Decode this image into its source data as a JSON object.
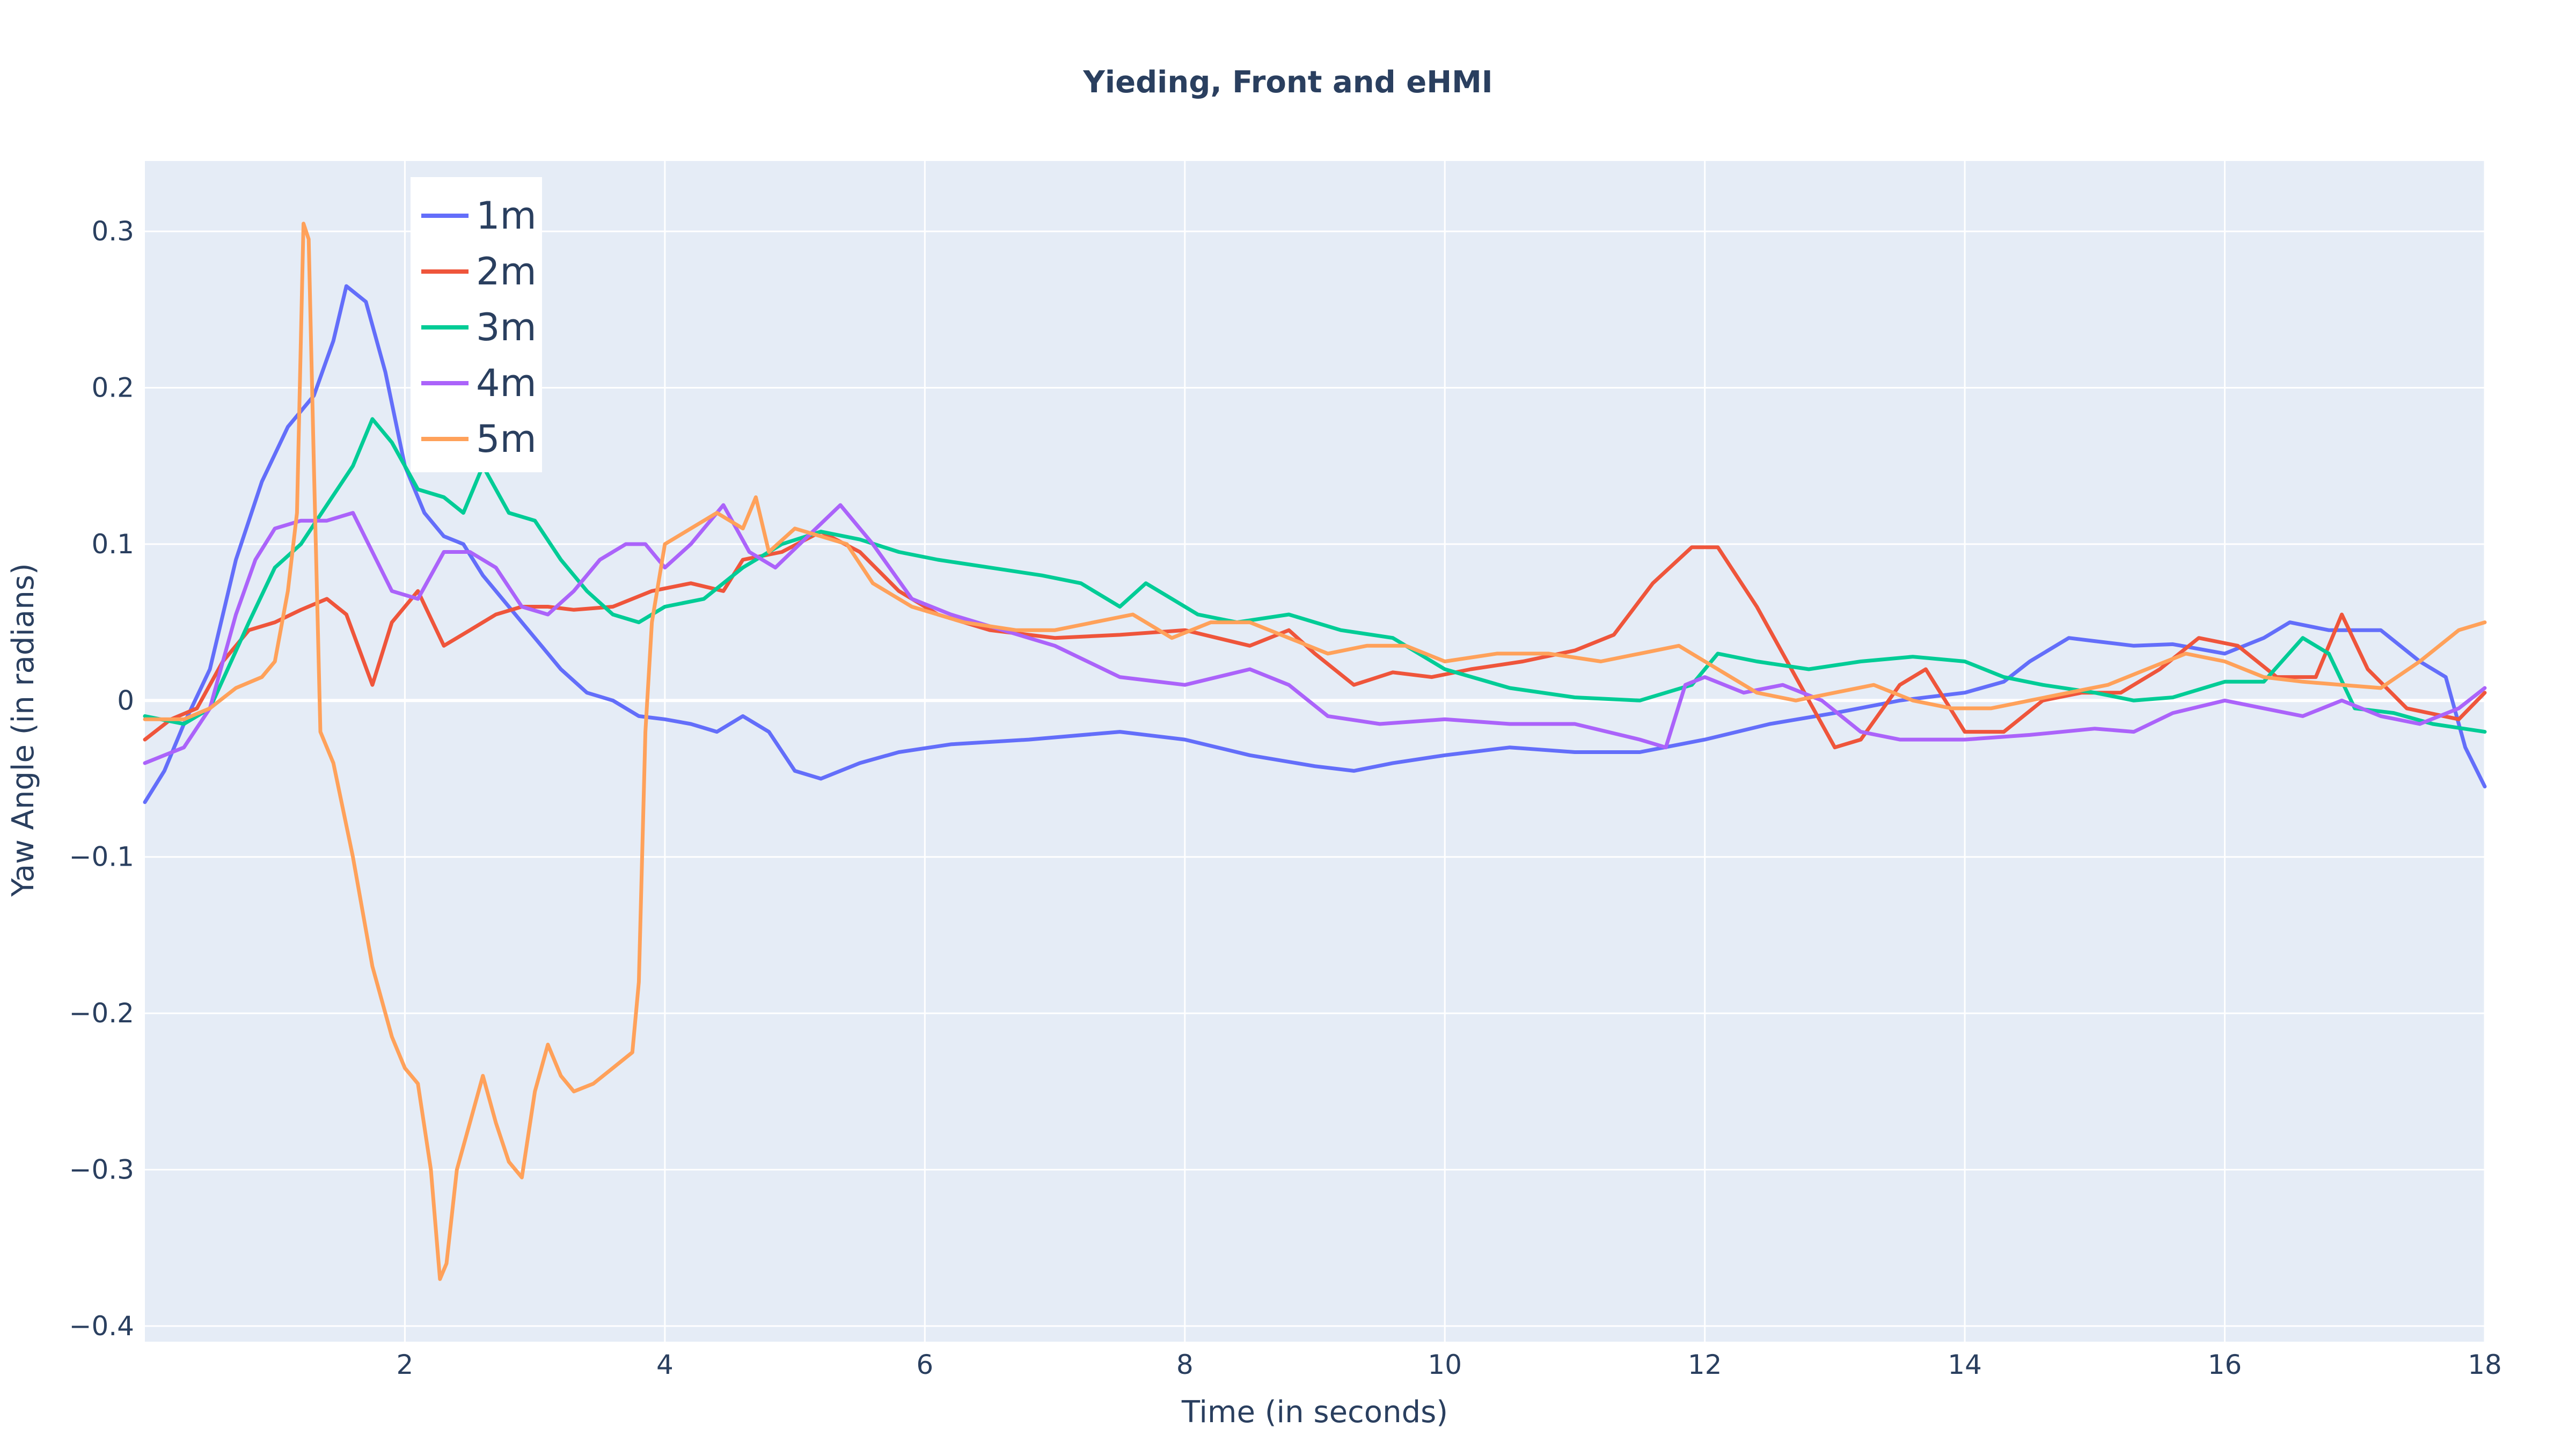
{
  "chart_data": {
    "type": "line",
    "title": "Yieding, Front and eHMI",
    "xlabel": "Time (in seconds)",
    "ylabel": "Yaw Angle (in radians)",
    "xlim": [
      0,
      18
    ],
    "ylim": [
      -0.41,
      0.345
    ],
    "xticks": [
      2,
      4,
      6,
      8,
      10,
      12,
      14,
      16,
      18
    ],
    "yticks": [
      -0.4,
      -0.3,
      -0.2,
      -0.1,
      0,
      0.1,
      0.2,
      0.3
    ],
    "ytick_labels": [
      "−0.4",
      "−0.3",
      "−0.2",
      "−0.1",
      "0",
      "0.1",
      "0.2",
      "0.3"
    ],
    "grid": true,
    "legend_position": "top-left",
    "series": [
      {
        "name": "1m",
        "color": "#636efa",
        "x": [
          0,
          0.15,
          0.3,
          0.5,
          0.7,
          0.9,
          1.1,
          1.3,
          1.45,
          1.55,
          1.7,
          1.85,
          2.0,
          2.15,
          2.3,
          2.45,
          2.6,
          2.8,
          3.0,
          3.2,
          3.4,
          3.6,
          3.8,
          4.0,
          4.2,
          4.4,
          4.6,
          4.8,
          5.0,
          5.2,
          5.5,
          5.8,
          6.2,
          6.8,
          7.5,
          8.0,
          8.5,
          9.0,
          9.3,
          9.6,
          10.0,
          10.5,
          11.0,
          11.5,
          12.0,
          12.5,
          13.0,
          13.5,
          14.0,
          14.3,
          14.5,
          14.8,
          15.0,
          15.3,
          15.6,
          16.0,
          16.3,
          16.5,
          16.8,
          17.0,
          17.2,
          17.5,
          17.7,
          17.85,
          18.0
        ],
        "y": [
          -0.065,
          -0.045,
          -0.015,
          0.02,
          0.09,
          0.14,
          0.175,
          0.195,
          0.23,
          0.265,
          0.255,
          0.21,
          0.15,
          0.12,
          0.105,
          0.1,
          0.08,
          0.06,
          0.04,
          0.02,
          0.005,
          0.0,
          -0.01,
          -0.012,
          -0.015,
          -0.02,
          -0.01,
          -0.02,
          -0.045,
          -0.05,
          -0.04,
          -0.033,
          -0.028,
          -0.025,
          -0.02,
          -0.025,
          -0.035,
          -0.042,
          -0.045,
          -0.04,
          -0.035,
          -0.03,
          -0.033,
          -0.033,
          -0.025,
          -0.015,
          -0.008,
          0.0,
          0.005,
          0.012,
          0.025,
          0.04,
          0.038,
          0.035,
          0.036,
          0.03,
          0.04,
          0.05,
          0.045,
          0.045,
          0.045,
          0.025,
          0.015,
          -0.03,
          -0.055
        ]
      },
      {
        "name": "2m",
        "color": "#ef553b",
        "x": [
          0,
          0.2,
          0.4,
          0.6,
          0.8,
          1.0,
          1.2,
          1.4,
          1.55,
          1.75,
          1.9,
          2.1,
          2.3,
          2.5,
          2.7,
          2.9,
          3.1,
          3.3,
          3.6,
          3.9,
          4.2,
          4.45,
          4.6,
          4.9,
          5.2,
          5.5,
          5.8,
          6.1,
          6.5,
          7.0,
          7.5,
          8.0,
          8.5,
          8.8,
          9.0,
          9.3,
          9.6,
          9.9,
          10.2,
          10.6,
          11.0,
          11.3,
          11.6,
          11.9,
          12.1,
          12.4,
          12.7,
          13.0,
          13.2,
          13.5,
          13.7,
          14.0,
          14.3,
          14.6,
          14.9,
          15.2,
          15.5,
          15.8,
          16.1,
          16.4,
          16.7,
          16.9,
          17.1,
          17.4,
          17.8,
          18.0
        ],
        "y": [
          -0.025,
          -0.012,
          -0.005,
          0.025,
          0.045,
          0.05,
          0.058,
          0.065,
          0.055,
          0.01,
          0.05,
          0.07,
          0.035,
          0.045,
          0.055,
          0.06,
          0.06,
          0.058,
          0.06,
          0.07,
          0.075,
          0.07,
          0.09,
          0.095,
          0.108,
          0.095,
          0.07,
          0.055,
          0.045,
          0.04,
          0.042,
          0.045,
          0.035,
          0.045,
          0.03,
          0.01,
          0.018,
          0.015,
          0.02,
          0.025,
          0.032,
          0.042,
          0.075,
          0.098,
          0.098,
          0.06,
          0.015,
          -0.03,
          -0.025,
          0.01,
          0.02,
          -0.02,
          -0.02,
          0.0,
          0.005,
          0.005,
          0.02,
          0.04,
          0.035,
          0.015,
          0.015,
          0.055,
          0.02,
          -0.005,
          -0.012,
          0.005
        ]
      },
      {
        "name": "3m",
        "color": "#00cc96",
        "x": [
          0,
          0.3,
          0.5,
          0.8,
          1.0,
          1.2,
          1.4,
          1.6,
          1.75,
          1.9,
          2.1,
          2.3,
          2.45,
          2.6,
          2.8,
          3.0,
          3.2,
          3.4,
          3.6,
          3.8,
          4.0,
          4.3,
          4.6,
          4.9,
          5.2,
          5.5,
          5.8,
          6.1,
          6.5,
          6.9,
          7.2,
          7.5,
          7.7,
          7.9,
          8.1,
          8.4,
          8.8,
          9.2,
          9.6,
          10.0,
          10.5,
          11.0,
          11.5,
          11.9,
          12.1,
          12.4,
          12.8,
          13.2,
          13.6,
          14.0,
          14.3,
          14.6,
          15.0,
          15.3,
          15.6,
          16.0,
          16.3,
          16.6,
          16.8,
          17.0,
          17.3,
          17.6,
          18.0
        ],
        "y": [
          -0.01,
          -0.015,
          -0.005,
          0.05,
          0.085,
          0.1,
          0.125,
          0.15,
          0.18,
          0.165,
          0.135,
          0.13,
          0.12,
          0.15,
          0.12,
          0.115,
          0.09,
          0.07,
          0.055,
          0.05,
          0.06,
          0.065,
          0.085,
          0.1,
          0.108,
          0.103,
          0.095,
          0.09,
          0.085,
          0.08,
          0.075,
          0.06,
          0.075,
          0.065,
          0.055,
          0.05,
          0.055,
          0.045,
          0.04,
          0.02,
          0.008,
          0.002,
          0.0,
          0.01,
          0.03,
          0.025,
          0.02,
          0.025,
          0.028,
          0.025,
          0.015,
          0.01,
          0.005,
          0.0,
          0.002,
          0.012,
          0.012,
          0.04,
          0.03,
          -0.005,
          -0.008,
          -0.015,
          -0.02
        ]
      },
      {
        "name": "4m",
        "color": "#ab63fa",
        "x": [
          0,
          0.3,
          0.5,
          0.7,
          0.85,
          1.0,
          1.2,
          1.4,
          1.6,
          1.75,
          1.9,
          2.1,
          2.3,
          2.5,
          2.7,
          2.9,
          3.1,
          3.3,
          3.5,
          3.7,
          3.85,
          4.0,
          4.2,
          4.45,
          4.65,
          4.85,
          5.1,
          5.35,
          5.6,
          5.9,
          6.2,
          6.6,
          7.0,
          7.5,
          8.0,
          8.5,
          8.8,
          9.1,
          9.5,
          10.0,
          10.5,
          11.0,
          11.5,
          11.7,
          11.85,
          12.0,
          12.3,
          12.6,
          12.9,
          13.2,
          13.5,
          14.0,
          14.5,
          15.0,
          15.3,
          15.6,
          16.0,
          16.3,
          16.6,
          16.9,
          17.2,
          17.5,
          17.8,
          18.0
        ],
        "y": [
          -0.04,
          -0.03,
          -0.005,
          0.055,
          0.09,
          0.11,
          0.115,
          0.115,
          0.12,
          0.095,
          0.07,
          0.065,
          0.095,
          0.095,
          0.085,
          0.06,
          0.055,
          0.07,
          0.09,
          0.1,
          0.1,
          0.085,
          0.1,
          0.125,
          0.095,
          0.085,
          0.105,
          0.125,
          0.1,
          0.065,
          0.055,
          0.045,
          0.035,
          0.015,
          0.01,
          0.02,
          0.01,
          -0.01,
          -0.015,
          -0.012,
          -0.015,
          -0.015,
          -0.025,
          -0.03,
          0.01,
          0.015,
          0.005,
          0.01,
          0.0,
          -0.02,
          -0.025,
          -0.025,
          -0.022,
          -0.018,
          -0.02,
          -0.008,
          0.0,
          -0.005,
          -0.01,
          0.0,
          -0.01,
          -0.015,
          -0.005,
          0.008
        ]
      },
      {
        "name": "5m",
        "color": "#ffa15a",
        "x": [
          0,
          0.3,
          0.5,
          0.7,
          0.9,
          1.0,
          1.1,
          1.17,
          1.22,
          1.26,
          1.3,
          1.35,
          1.45,
          1.6,
          1.75,
          1.9,
          2.0,
          2.1,
          2.2,
          2.27,
          2.32,
          2.4,
          2.5,
          2.6,
          2.7,
          2.8,
          2.9,
          3.0,
          3.1,
          3.2,
          3.3,
          3.45,
          3.6,
          3.75,
          3.8,
          3.85,
          3.9,
          4.0,
          4.2,
          4.4,
          4.6,
          4.7,
          4.8,
          5.0,
          5.2,
          5.4,
          5.6,
          5.9,
          6.3,
          6.7,
          7.0,
          7.3,
          7.6,
          7.9,
          8.2,
          8.5,
          8.8,
          9.1,
          9.4,
          9.7,
          10.0,
          10.4,
          10.8,
          11.2,
          11.5,
          11.8,
          12.1,
          12.4,
          12.7,
          13.0,
          13.3,
          13.6,
          13.9,
          14.2,
          14.5,
          14.8,
          15.1,
          15.4,
          15.7,
          16.0,
          16.3,
          16.6,
          16.9,
          17.2,
          17.5,
          17.8,
          18.0
        ],
        "y": [
          -0.012,
          -0.012,
          -0.005,
          0.008,
          0.015,
          0.025,
          0.07,
          0.12,
          0.305,
          0.295,
          0.15,
          -0.02,
          -0.04,
          -0.1,
          -0.17,
          -0.215,
          -0.235,
          -0.245,
          -0.3,
          -0.37,
          -0.36,
          -0.3,
          -0.27,
          -0.24,
          -0.27,
          -0.295,
          -0.305,
          -0.25,
          -0.22,
          -0.24,
          -0.25,
          -0.245,
          -0.235,
          -0.225,
          -0.18,
          -0.02,
          0.05,
          0.1,
          0.11,
          0.12,
          0.11,
          0.13,
          0.095,
          0.11,
          0.105,
          0.1,
          0.075,
          0.06,
          0.05,
          0.045,
          0.045,
          0.05,
          0.055,
          0.04,
          0.05,
          0.05,
          0.04,
          0.03,
          0.035,
          0.035,
          0.025,
          0.03,
          0.03,
          0.025,
          0.03,
          0.035,
          0.02,
          0.005,
          0.0,
          0.005,
          0.01,
          0.0,
          -0.005,
          -0.005,
          0.0,
          0.005,
          0.01,
          0.02,
          0.03,
          0.025,
          0.015,
          0.012,
          0.01,
          0.008,
          0.025,
          0.045,
          0.05
        ]
      }
    ]
  }
}
